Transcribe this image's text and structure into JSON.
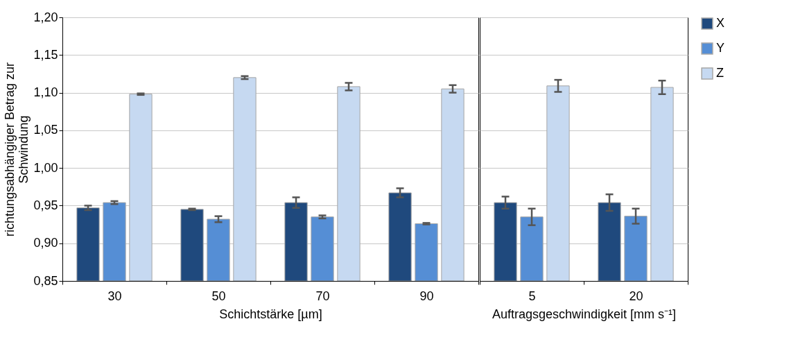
{
  "chart_data": [
    {
      "type": "bar",
      "ylabel": "richtungsabhängiger Betrag zur Schwindung",
      "xlabel": "Schichtstärke [µm]",
      "categories": [
        "30",
        "50",
        "70",
        "90"
      ],
      "ylim": [
        0.85,
        1.2
      ],
      "yticks": [
        {
          "value": 0.85,
          "label": "0,85"
        },
        {
          "value": 0.9,
          "label": "0,90"
        },
        {
          "value": 0.95,
          "label": "0,95"
        },
        {
          "value": 1.0,
          "label": "1,00"
        },
        {
          "value": 1.05,
          "label": "1,05"
        },
        {
          "value": 1.1,
          "label": "1,10"
        },
        {
          "value": 1.15,
          "label": "1,15"
        },
        {
          "value": 1.2,
          "label": "1,20"
        }
      ],
      "grid": "y",
      "legend": "right",
      "series": [
        {
          "name": "X",
          "color": "#1f497d",
          "values": [
            0.947,
            0.945,
            0.954,
            0.967
          ],
          "errors": [
            0.003,
            0.001,
            0.007,
            0.006
          ]
        },
        {
          "name": "Y",
          "color": "#558ed5",
          "values": [
            0.954,
            0.932,
            0.935,
            0.926
          ],
          "errors": [
            0.002,
            0.004,
            0.002,
            0.001
          ]
        },
        {
          "name": "Z",
          "color": "#c6d9f1",
          "values": [
            1.098,
            1.12,
            1.108,
            1.105
          ],
          "errors": [
            0.001,
            0.002,
            0.005,
            0.005
          ]
        }
      ]
    },
    {
      "type": "bar",
      "xlabel": "Auftragsgeschwindigkeit [mm s⁻¹]",
      "categories": [
        "5",
        "20"
      ],
      "ylim": [
        0.85,
        1.2
      ],
      "yticks": [
        {
          "value": 0.85,
          "label": null
        },
        {
          "value": 0.9,
          "label": null
        },
        {
          "value": 0.95,
          "label": null
        },
        {
          "value": 1.0,
          "label": null
        },
        {
          "value": 1.05,
          "label": null
        },
        {
          "value": 1.1,
          "label": null
        },
        {
          "value": 1.15,
          "label": null
        },
        {
          "value": 1.2,
          "label": null
        }
      ],
      "grid": "y",
      "legend": "right",
      "tick_labels": "x",
      "series": [
        {
          "name": "X",
          "color": "#1f497d",
          "values": [
            0.954,
            0.954
          ],
          "errors": [
            0.008,
            0.011
          ]
        },
        {
          "name": "Y",
          "color": "#558ed5",
          "values": [
            0.935,
            0.936
          ],
          "errors": [
            0.011,
            0.01
          ]
        },
        {
          "name": "Z",
          "color": "#c6d9f1",
          "values": [
            1.109,
            1.107
          ],
          "errors": [
            0.008,
            0.009
          ]
        }
      ]
    }
  ]
}
